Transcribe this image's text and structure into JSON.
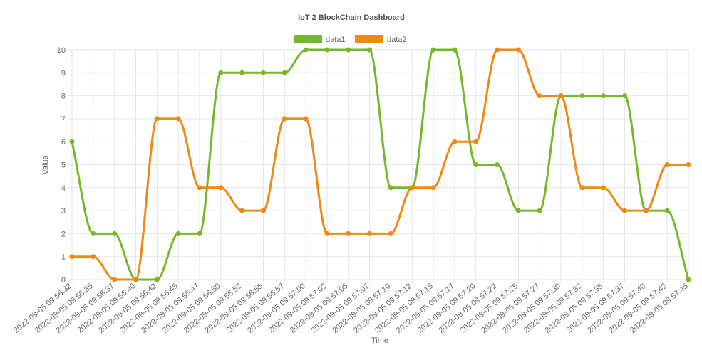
{
  "chart_data": {
    "type": "line",
    "title": "IoT 2 BlockChain Dashboard",
    "xlabel": "Time",
    "ylabel": "Value",
    "ylim": [
      0,
      10
    ],
    "yticks": [
      0,
      1,
      2,
      3,
      4,
      5,
      6,
      7,
      8,
      9,
      10
    ],
    "grid": true,
    "legend_position": "top-center",
    "categories": [
      "2022-09-05 09:56:32",
      "2022-09-05 09:56:35",
      "2022-09-05 09:56:37",
      "2022-09-05 09:56:40",
      "2022-09-05 09:56:42",
      "2022-09-05 09:56:45",
      "2022-09-05 09:56:47",
      "2022-09-05 09:56:50",
      "2022-09-05 09:56:52",
      "2022-09-05 09:56:55",
      "2022-09-05 09:56:57",
      "2022-09-05 09:57:00",
      "2022-09-05 09:57:02",
      "2022-09-05 09:57:05",
      "2022-09-05 09:57:07",
      "2022-09-05 09:57:10",
      "2022-09-05 09:57:12",
      "2022-09-05 09:57:15",
      "2022-09-05 09:57:17",
      "2022-09-05 09:57:20",
      "2022-09-05 09:57:22",
      "2022-09-05 09:57:25",
      "2022-09-05 09:57:27",
      "2022-09-05 09:57:30",
      "2022-09-05 09:57:32",
      "2022-09-05 09:57:35",
      "2022-09-05 09:57:37",
      "2022-09-05 09:57:40",
      "2022-09-05 09:57:42",
      "2022-09-05 09:57:45"
    ],
    "series": [
      {
        "name": "data1",
        "color": "#76b82a",
        "values": [
          6,
          2,
          2,
          0,
          0,
          2,
          2,
          9,
          9,
          9,
          9,
          10,
          10,
          10,
          10,
          4,
          4,
          10,
          10,
          5,
          5,
          3,
          3,
          8,
          8,
          8,
          8,
          3,
          3,
          0
        ]
      },
      {
        "name": "data2",
        "color": "#ec8a16",
        "values": [
          1,
          1,
          0,
          0,
          7,
          7,
          4,
          4,
          3,
          3,
          7,
          7,
          2,
          2,
          2,
          2,
          4,
          4,
          6,
          6,
          10,
          10,
          8,
          8,
          4,
          4,
          3,
          3,
          5,
          5
        ]
      }
    ]
  }
}
